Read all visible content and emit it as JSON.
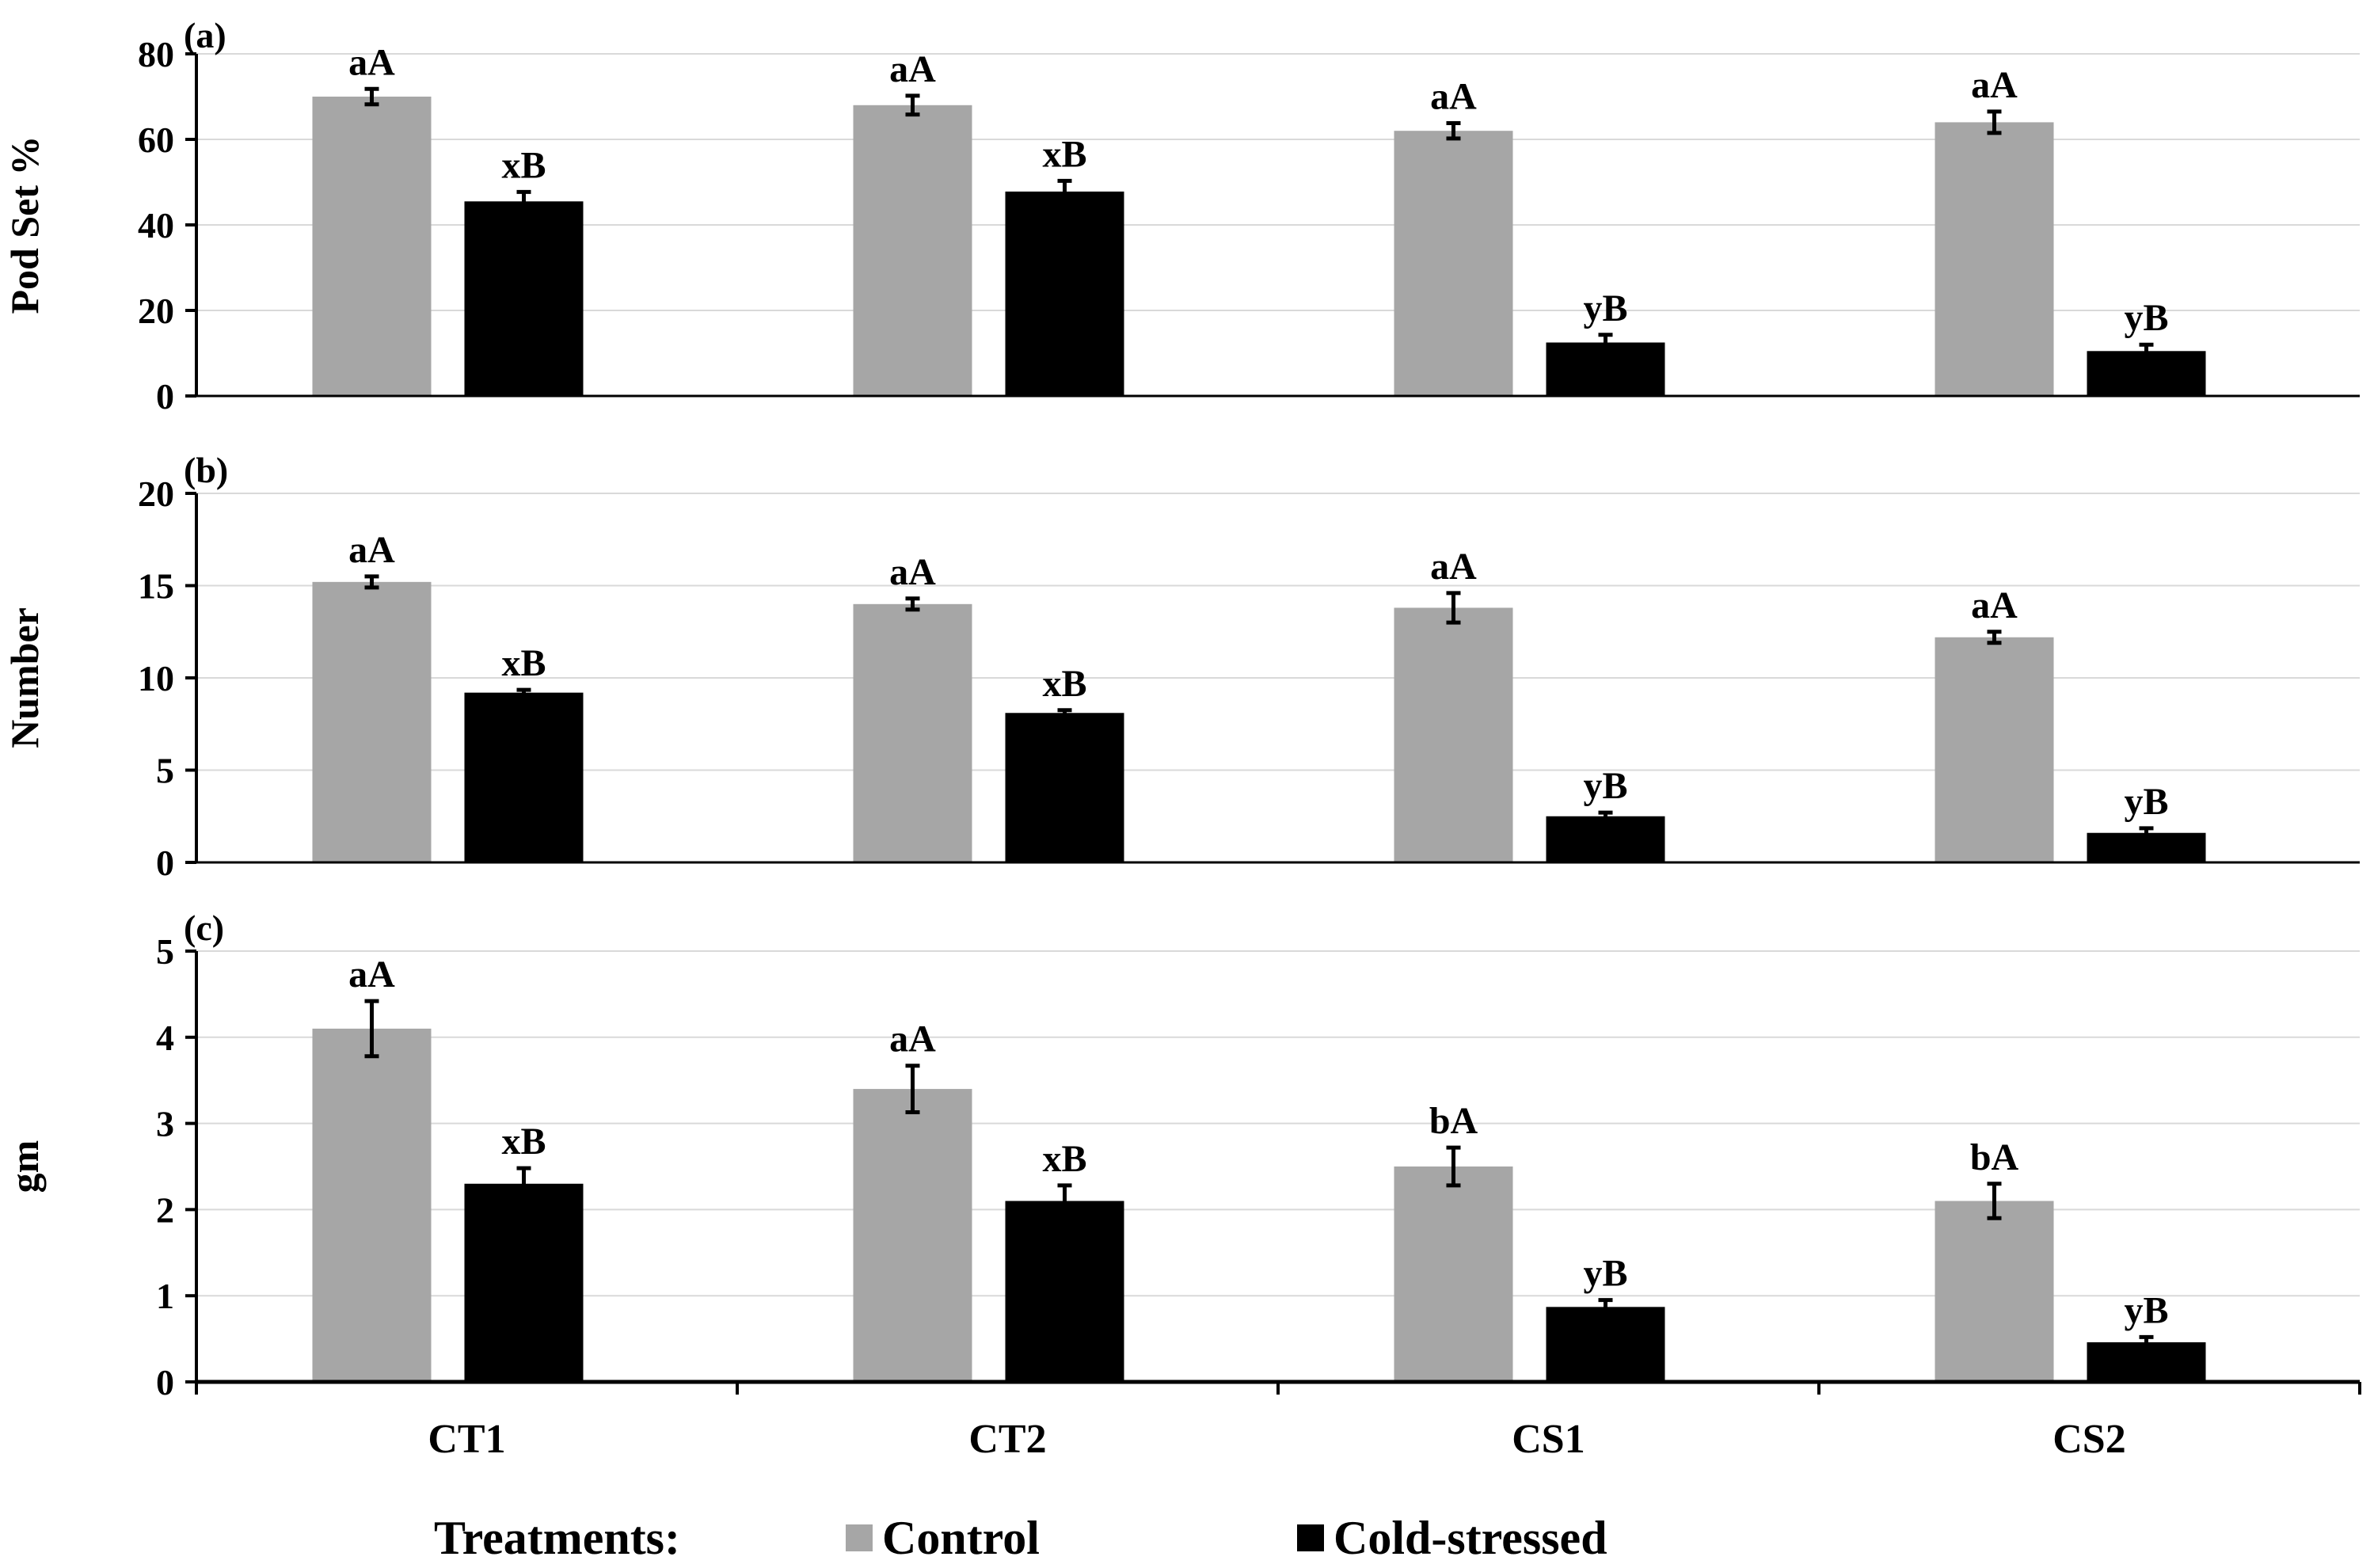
{
  "chart_data": [
    {
      "panel": "(a)",
      "type": "bar",
      "ylabel": "Pod Set %",
      "ylim": [
        0,
        80
      ],
      "yticks": [
        "0",
        "20",
        "40",
        "60",
        "80"
      ],
      "grid": true,
      "categories": [
        "CT1",
        "CT2",
        "CS1",
        "CS2"
      ],
      "series": [
        {
          "name": "Control",
          "color": "#a6a6a6",
          "values": [
            70,
            68,
            62,
            64
          ],
          "errors": [
            1.8,
            2.2,
            1.8,
            2.5
          ],
          "labels": [
            "aA",
            "aA",
            "aA",
            "aA"
          ]
        },
        {
          "name": "Cold-stressed",
          "color": "#000000",
          "values": [
            45.5,
            47.8,
            12.5,
            10.5
          ],
          "errors": [
            2.2,
            2.5,
            1.8,
            1.5
          ],
          "labels": [
            "xB",
            "xB",
            "yB",
            "yB"
          ]
        }
      ]
    },
    {
      "panel": "(b)",
      "type": "bar",
      "ylabel": "Number",
      "ylim": [
        0,
        20
      ],
      "yticks": [
        "0",
        "5",
        "10",
        "15",
        "20"
      ],
      "grid": true,
      "categories": [
        "CT1",
        "CT2",
        "CS1",
        "CS2"
      ],
      "series": [
        {
          "name": "Control",
          "color": "#a6a6a6",
          "values": [
            15.2,
            14,
            13.8,
            12.2
          ],
          "errors": [
            0.3,
            0.3,
            0.8,
            0.3
          ],
          "labels": [
            "aA",
            "aA",
            "aA",
            "aA"
          ]
        },
        {
          "name": "Cold-stressed",
          "color": "#000000",
          "values": [
            9.2,
            8.1,
            2.5,
            1.6
          ],
          "errors": [
            0.15,
            0.15,
            0.2,
            0.25
          ],
          "labels": [
            "xB",
            "xB",
            "yB",
            "yB"
          ]
        }
      ]
    },
    {
      "panel": "(c)",
      "type": "bar",
      "ylabel": "gm",
      "ylim": [
        0,
        5
      ],
      "yticks": [
        "0",
        "1",
        "2",
        "3",
        "4",
        "5"
      ],
      "grid": true,
      "categories": [
        "CT1",
        "CT2",
        "CS1",
        "CS2"
      ],
      "series": [
        {
          "name": "Control",
          "color": "#a6a6a6",
          "values": [
            4.1,
            3.4,
            2.5,
            2.1
          ],
          "errors": [
            0.32,
            0.27,
            0.22,
            0.2
          ],
          "labels": [
            "aA",
            "aA",
            "bA",
            "bA"
          ]
        },
        {
          "name": "Cold-stressed",
          "color": "#000000",
          "values": [
            2.3,
            2.1,
            0.87,
            0.46
          ],
          "errors": [
            0.18,
            0.18,
            0.08,
            0.06
          ],
          "labels": [
            "xB",
            "xB",
            "yB",
            "yB"
          ]
        }
      ]
    }
  ],
  "legend": {
    "title": "Treatments:",
    "items": [
      {
        "label": "Control",
        "color": "#a6a6a6"
      },
      {
        "label": "Cold-stressed",
        "color": "#000000"
      }
    ]
  }
}
